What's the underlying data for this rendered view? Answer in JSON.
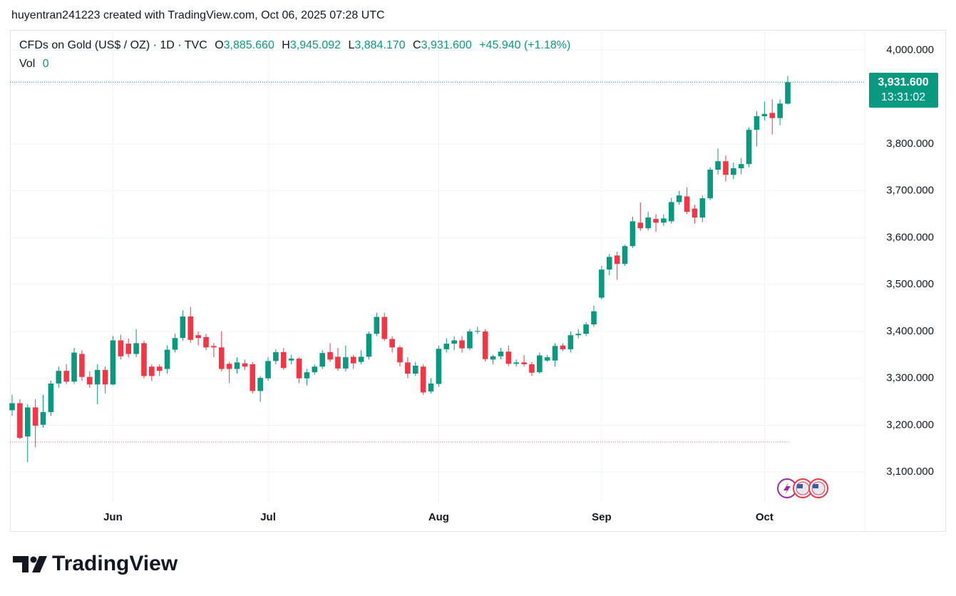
{
  "header": {
    "text": "huyentran241223 created with TradingView.com, Oct 06, 2025 07:28 UTC"
  },
  "legend": {
    "symbol": "CFDs on Gold (US$ / OZ) · 1D · TVC",
    "open_label": "O",
    "open": "3,885.660",
    "high_label": "H",
    "high": "3,945.092",
    "low_label": "L",
    "low": "3,884.170",
    "close_label": "C",
    "close": "3,931.600",
    "change": "+45.940 (+1.18%)",
    "volume_label": "Vol",
    "volume": "0"
  },
  "price_tag": {
    "price": "3,931.600",
    "countdown": "13:31:02"
  },
  "footer": {
    "brand": "TradingView"
  },
  "chart_data": {
    "type": "candlestick",
    "categories": [
      null,
      null,
      null,
      null,
      null,
      null,
      null,
      null,
      null,
      null,
      null,
      null,
      null,
      "Jun",
      null,
      null,
      null,
      null,
      null,
      null,
      null,
      null,
      null,
      null,
      null,
      null,
      null,
      null,
      null,
      null,
      null,
      null,
      null,
      "Jul",
      null,
      null,
      null,
      null,
      null,
      null,
      null,
      null,
      null,
      null,
      null,
      null,
      null,
      null,
      null,
      null,
      null,
      null,
      null,
      null,
      null,
      "Aug",
      null,
      null,
      null,
      null,
      null,
      null,
      null,
      null,
      null,
      null,
      null,
      null,
      null,
      null,
      null,
      null,
      null,
      null,
      null,
      null,
      "Sep",
      null,
      null,
      null,
      null,
      null,
      null,
      null,
      null,
      null,
      null,
      null,
      null,
      null,
      null,
      null,
      null,
      null,
      null,
      null,
      null,
      "Oct",
      null,
      null,
      null
    ],
    "series": [
      {
        "up_color": "#089981",
        "down_color": "#f23645",
        "open": [
          3232,
          3247,
          3176,
          3238,
          3201,
          3228,
          3289,
          3316,
          3293,
          3352,
          3303,
          3287,
          3318,
          3287,
          3381,
          3374,
          3352,
          3375,
          3325,
          3325,
          3320,
          3361,
          3386,
          3432,
          3392,
          3388,
          3369,
          3366,
          3331,
          3320,
          3332,
          3330,
          3273,
          3300,
          3337,
          3356,
          3338,
          3342,
          3300,
          3313,
          3325,
          3356,
          3346,
          3321,
          3346,
          3335,
          3346,
          3395,
          3431,
          3384,
          3366,
          3334,
          3310,
          3325,
          3272,
          3288,
          3362,
          3374,
          3381,
          3364,
          3400,
          3400,
          3340,
          3347,
          3357,
          3331,
          3334,
          3330,
          3313,
          3338,
          3338,
          3370,
          3362,
          3392,
          3395,
          3415,
          3472,
          3532,
          3562,
          3544,
          3582,
          3632,
          3620,
          3640,
          3632,
          3635,
          3676,
          3688,
          3662,
          3643,
          3684,
          3745,
          3763,
          3734,
          3748,
          3757,
          3830,
          3859,
          3866,
          3855,
          3885.66
        ],
        "high": [
          3265,
          3255,
          3245,
          3255,
          3265,
          3295,
          3325,
          3330,
          3365,
          3360,
          3315,
          3330,
          3325,
          3390,
          3393,
          3385,
          3405,
          3380,
          3330,
          3330,
          3370,
          3395,
          3445,
          3452,
          3400,
          3395,
          3375,
          3400,
          3335,
          3345,
          3340,
          3335,
          3305,
          3345,
          3362,
          3365,
          3350,
          3345,
          3320,
          3330,
          3360,
          3375,
          3365,
          3370,
          3350,
          3360,
          3400,
          3440,
          3440,
          3390,
          3370,
          3345,
          3335,
          3330,
          3300,
          3370,
          3385,
          3390,
          3390,
          3405,
          3410,
          3405,
          3350,
          3365,
          3370,
          3340,
          3350,
          3335,
          3355,
          3350,
          3375,
          3375,
          3400,
          3405,
          3420,
          3455,
          3540,
          3565,
          3570,
          3585,
          3645,
          3675,
          3655,
          3650,
          3650,
          3685,
          3700,
          3707,
          3670,
          3690,
          3750,
          3790,
          3775,
          3760,
          3770,
          3835,
          3870,
          3890,
          3895,
          3895,
          3945.092
        ],
        "low": [
          3220,
          3170,
          3121,
          3153,
          3195,
          3220,
          3280,
          3288,
          3288,
          3295,
          3280,
          3245,
          3268,
          3285,
          3340,
          3345,
          3345,
          3300,
          3295,
          3305,
          3310,
          3355,
          3380,
          3376,
          3370,
          3360,
          3345,
          3315,
          3290,
          3310,
          3318,
          3268,
          3250,
          3295,
          3330,
          3318,
          3330,
          3290,
          3285,
          3308,
          3320,
          3335,
          3316,
          3315,
          3320,
          3330,
          3340,
          3390,
          3380,
          3355,
          3325,
          3300,
          3305,
          3265,
          3268,
          3282,
          3355,
          3360,
          3355,
          3360,
          3395,
          3336,
          3330,
          3340,
          3326,
          3325,
          3325,
          3305,
          3310,
          3335,
          3325,
          3358,
          3355,
          3385,
          3390,
          3410,
          3468,
          3520,
          3510,
          3540,
          3578,
          3615,
          3615,
          3612,
          3625,
          3630,
          3670,
          3650,
          3630,
          3633,
          3680,
          3735,
          3720,
          3725,
          3735,
          3750,
          3795,
          3850,
          3820,
          3840,
          3884.17
        ],
        "close": [
          3247,
          3173,
          3238,
          3199,
          3228,
          3289,
          3316,
          3293,
          3355,
          3303,
          3287,
          3318,
          3287,
          3381,
          3347,
          3352,
          3375,
          3305,
          3305,
          3316,
          3361,
          3386,
          3432,
          3382,
          3386,
          3366,
          3366,
          3320,
          3320,
          3334,
          3325,
          3273,
          3301,
          3337,
          3356,
          3322,
          3342,
          3300,
          3313,
          3325,
          3354,
          3340,
          3321,
          3345,
          3332,
          3346,
          3395,
          3431,
          3384,
          3366,
          3334,
          3310,
          3327,
          3270,
          3289,
          3363,
          3374,
          3381,
          3364,
          3400,
          3401,
          3341,
          3347,
          3357,
          3331,
          3334,
          3330,
          3312,
          3349,
          3345,
          3369,
          3362,
          3392,
          3395,
          3415,
          3443,
          3532,
          3559,
          3544,
          3582,
          3635,
          3620,
          3643,
          3632,
          3641,
          3676,
          3690,
          3655,
          3643,
          3684,
          3745,
          3763,
          3734,
          3748,
          3757,
          3830,
          3859,
          3864,
          3855,
          3886,
          3931.6
        ]
      }
    ],
    "reference_line": 3164,
    "reference_color": "#f23645",
    "ylim": [
      3035,
      4043
    ],
    "yticks": [
      {
        "value": 3100,
        "label": "3,100.000"
      },
      {
        "value": 3200,
        "label": "3,200.000"
      },
      {
        "value": 3300,
        "label": "3,300.000"
      },
      {
        "value": 3400,
        "label": "3,400.000"
      },
      {
        "value": 3500,
        "label": "3,500.000"
      },
      {
        "value": 3600,
        "label": "3,600.000"
      },
      {
        "value": 3700,
        "label": "3,700.000"
      },
      {
        "value": 3800,
        "label": "3,800.000"
      },
      {
        "value": 4000,
        "label": "4,000.000"
      }
    ],
    "grid": true
  }
}
